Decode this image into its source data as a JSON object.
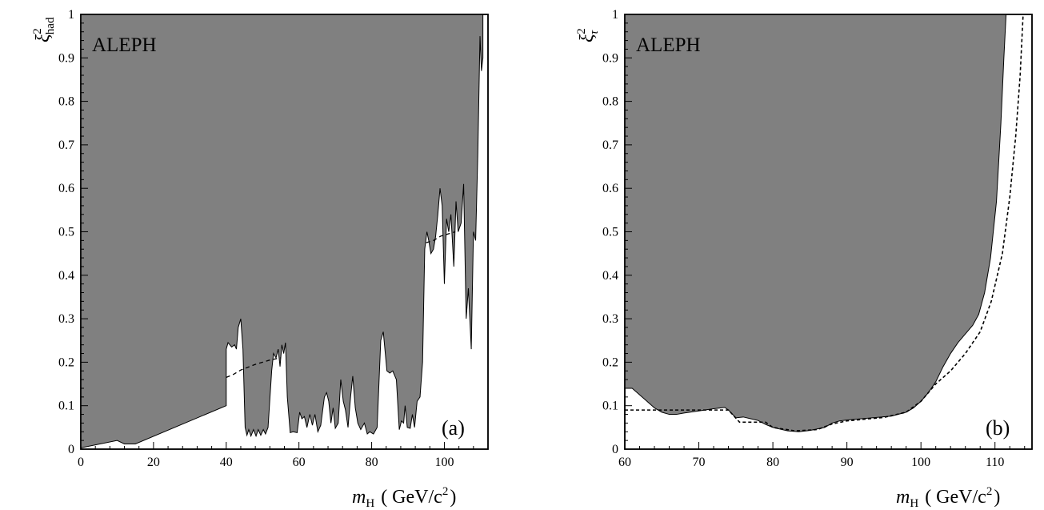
{
  "figure": {
    "panels": [
      "a",
      "b"
    ]
  },
  "colors": {
    "excluded_fill": "#808080",
    "axis": "#000000",
    "background": "#ffffff"
  },
  "chart_data": [
    {
      "type": "area",
      "panel_label": "(a)",
      "title": "ALEPH",
      "xlabel_main": "m",
      "xlabel_sub": "H",
      "xlabel_unit": "( GeV/c",
      "xlabel_unit_sup": "2",
      "xlabel_close": ")",
      "ylabel_main": "ξ",
      "ylabel_sup": "2",
      "ylabel_sub": "had",
      "xlim": [
        0,
        112
      ],
      "ylim": [
        0,
        1
      ],
      "x_ticks": [
        0,
        20,
        40,
        60,
        80,
        100
      ],
      "x_tick_labels": [
        "0",
        "20",
        "40",
        "60",
        "80",
        "100"
      ],
      "y_ticks": [
        0,
        0.1,
        0.2,
        0.3,
        0.4,
        0.5,
        0.6,
        0.7,
        0.8,
        0.9,
        1
      ],
      "y_tick_labels": [
        "0",
        "0.1",
        "0.2",
        "0.3",
        "0.4",
        "0.5",
        "0.6",
        "0.7",
        "0.8",
        "0.9",
        "1"
      ],
      "legend": "none",
      "grid": false,
      "series": [
        {
          "role": "observed excluded region (shaded above curve)",
          "style": "solid",
          "points": [
            [
              0,
              0.003
            ],
            [
              10,
              0.02
            ],
            [
              12,
              0.012
            ],
            [
              15,
              0.012
            ],
            [
              40,
              0.1
            ],
            [
              40,
              0.23
            ],
            [
              40.5,
              0.245
            ],
            [
              41.5,
              0.235
            ],
            [
              42.3,
              0.24
            ],
            [
              42.8,
              0.23
            ],
            [
              43.3,
              0.28
            ],
            [
              44,
              0.3
            ],
            [
              44.6,
              0.23
            ],
            [
              45.2,
              0.05
            ],
            [
              45.7,
              0.032
            ],
            [
              46.2,
              0.045
            ],
            [
              46.8,
              0.03
            ],
            [
              47.5,
              0.045
            ],
            [
              48.2,
              0.03
            ],
            [
              48.8,
              0.045
            ],
            [
              49.5,
              0.032
            ],
            [
              50.2,
              0.045
            ],
            [
              50.8,
              0.035
            ],
            [
              51.5,
              0.05
            ],
            [
              52.5,
              0.18
            ],
            [
              53,
              0.22
            ],
            [
              53.7,
              0.21
            ],
            [
              54.3,
              0.23
            ],
            [
              54.8,
              0.19
            ],
            [
              55.3,
              0.24
            ],
            [
              55.8,
              0.22
            ],
            [
              56.3,
              0.245
            ],
            [
              56.8,
              0.12
            ],
            [
              57.6,
              0.038
            ],
            [
              58.4,
              0.04
            ],
            [
              59.5,
              0.038
            ],
            [
              60.2,
              0.085
            ],
            [
              60.8,
              0.07
            ],
            [
              61.5,
              0.075
            ],
            [
              62.2,
              0.05
            ],
            [
              63,
              0.08
            ],
            [
              63.7,
              0.055
            ],
            [
              64.4,
              0.08
            ],
            [
              65.2,
              0.04
            ],
            [
              66,
              0.055
            ],
            [
              67,
              0.12
            ],
            [
              67.6,
              0.13
            ],
            [
              68.2,
              0.11
            ],
            [
              68.8,
              0.06
            ],
            [
              69.4,
              0.095
            ],
            [
              70,
              0.048
            ],
            [
              70.8,
              0.06
            ],
            [
              71.5,
              0.16
            ],
            [
              72.2,
              0.11
            ],
            [
              72.8,
              0.09
            ],
            [
              73.5,
              0.05
            ],
            [
              74.2,
              0.12
            ],
            [
              74.8,
              0.168
            ],
            [
              75.5,
              0.095
            ],
            [
              76.2,
              0.06
            ],
            [
              77,
              0.045
            ],
            [
              78,
              0.06
            ],
            [
              78.8,
              0.035
            ],
            [
              79.5,
              0.04
            ],
            [
              80.5,
              0.035
            ],
            [
              81.5,
              0.05
            ],
            [
              82.5,
              0.25
            ],
            [
              83.2,
              0.27
            ],
            [
              84.2,
              0.18
            ],
            [
              85,
              0.175
            ],
            [
              85.8,
              0.18
            ],
            [
              86.8,
              0.16
            ],
            [
              87.6,
              0.045
            ],
            [
              88.2,
              0.065
            ],
            [
              88.8,
              0.06
            ],
            [
              89.2,
              0.1
            ],
            [
              89.8,
              0.05
            ],
            [
              90.6,
              0.048
            ],
            [
              91.2,
              0.08
            ],
            [
              91.8,
              0.05
            ],
            [
              92.5,
              0.11
            ],
            [
              93.3,
              0.12
            ],
            [
              94,
              0.2
            ],
            [
              94.6,
              0.46
            ],
            [
              95.2,
              0.5
            ],
            [
              95.7,
              0.48
            ],
            [
              96.3,
              0.45
            ],
            [
              97,
              0.46
            ],
            [
              97.6,
              0.49
            ],
            [
              98.2,
              0.54
            ],
            [
              98.8,
              0.6
            ],
            [
              99.4,
              0.56
            ],
            [
              100,
              0.38
            ],
            [
              100.6,
              0.53
            ],
            [
              101.2,
              0.5
            ],
            [
              101.8,
              0.54
            ],
            [
              102.6,
              0.42
            ],
            [
              103.2,
              0.57
            ],
            [
              103.8,
              0.5
            ],
            [
              104.6,
              0.52
            ],
            [
              105.3,
              0.61
            ],
            [
              106,
              0.3
            ],
            [
              106.6,
              0.37
            ],
            [
              107.4,
              0.23
            ],
            [
              108,
              0.5
            ],
            [
              108.6,
              0.48
            ],
            [
              109.2,
              0.68
            ],
            [
              109.8,
              0.95
            ],
            [
              110.2,
              0.87
            ],
            [
              110.6,
              0.9
            ],
            [
              110.6,
              1.0
            ]
          ]
        },
        {
          "role": "expected limit",
          "style": "dashed",
          "points": [
            [
              40,
              0.165
            ],
            [
              42,
              0.172
            ],
            [
              44,
              0.182
            ],
            [
              48,
              0.195
            ],
            [
              52,
              0.205
            ],
            [
              55,
              0.21
            ]
          ],
          "points2": [
            [
              95,
              0.475
            ],
            [
              97,
              0.48
            ],
            [
              99,
              0.49
            ],
            [
              101,
              0.495
            ],
            [
              103,
              0.5
            ]
          ]
        }
      ]
    },
    {
      "type": "area",
      "panel_label": "(b)",
      "title": "ALEPH",
      "xlabel_main": "m",
      "xlabel_sub": "H",
      "xlabel_unit": "( GeV/c",
      "xlabel_unit_sup": "2",
      "xlabel_close": ")",
      "ylabel_main": "ξ",
      "ylabel_sup": "2",
      "ylabel_sub": "τ",
      "xlim": [
        60,
        115
      ],
      "ylim": [
        0,
        1
      ],
      "x_ticks": [
        60,
        70,
        80,
        90,
        100,
        110
      ],
      "x_tick_labels": [
        "60",
        "70",
        "80",
        "90",
        "100",
        "110"
      ],
      "y_ticks": [
        0,
        0.1,
        0.2,
        0.3,
        0.4,
        0.5,
        0.6,
        0.7,
        0.8,
        0.9,
        1
      ],
      "y_tick_labels": [
        "0",
        "0.1",
        "0.2",
        "0.3",
        "0.4",
        "0.5",
        "0.6",
        "0.7",
        "0.8",
        "0.9",
        "1"
      ],
      "legend": "none",
      "grid": false,
      "series": [
        {
          "role": "observed excluded region (shaded above curve)",
          "style": "solid",
          "points": [
            [
              60,
              0.14
            ],
            [
              61,
              0.14
            ],
            [
              62,
              0.125
            ],
            [
              63,
              0.11
            ],
            [
              64,
              0.095
            ],
            [
              65,
              0.085
            ],
            [
              66,
              0.08
            ],
            [
              67,
              0.08
            ],
            [
              68,
              0.083
            ],
            [
              70,
              0.088
            ],
            [
              72,
              0.093
            ],
            [
              73.5,
              0.096
            ],
            [
              74,
              0.09
            ],
            [
              75,
              0.072
            ],
            [
              76,
              0.074
            ],
            [
              77,
              0.07
            ],
            [
              78,
              0.066
            ],
            [
              79,
              0.057
            ],
            [
              80,
              0.05
            ],
            [
              82,
              0.042
            ],
            [
              83.5,
              0.04
            ],
            [
              85,
              0.043
            ],
            [
              87,
              0.05
            ],
            [
              88,
              0.06
            ],
            [
              89,
              0.065
            ],
            [
              90,
              0.067
            ],
            [
              92,
              0.07
            ],
            [
              94,
              0.073
            ],
            [
              96,
              0.076
            ],
            [
              98,
              0.085
            ],
            [
              99,
              0.095
            ],
            [
              100,
              0.11
            ],
            [
              101,
              0.13
            ],
            [
              102,
              0.155
            ],
            [
              103,
              0.19
            ],
            [
              104,
              0.22
            ],
            [
              105,
              0.245
            ],
            [
              106,
              0.265
            ],
            [
              107,
              0.285
            ],
            [
              107.8,
              0.31
            ],
            [
              108.6,
              0.36
            ],
            [
              109.4,
              0.44
            ],
            [
              110.2,
              0.57
            ],
            [
              110.8,
              0.75
            ],
            [
              111.2,
              0.9
            ],
            [
              111.5,
              1.0
            ]
          ]
        },
        {
          "role": "expected limit",
          "style": "dashed",
          "points": [
            [
              60,
              0.09
            ],
            [
              74,
              0.09
            ],
            [
              75.5,
              0.062
            ],
            [
              79,
              0.062
            ],
            [
              80,
              0.05
            ],
            [
              83,
              0.042
            ],
            [
              86,
              0.045
            ],
            [
              88,
              0.058
            ],
            [
              90,
              0.065
            ],
            [
              95,
              0.073
            ],
            [
              98,
              0.085
            ],
            [
              100,
              0.11
            ],
            [
              102,
              0.15
            ],
            [
              104,
              0.18
            ],
            [
              106,
              0.22
            ],
            [
              108,
              0.27
            ],
            [
              109.5,
              0.34
            ],
            [
              111,
              0.45
            ],
            [
              112,
              0.58
            ],
            [
              112.8,
              0.72
            ],
            [
              113.4,
              0.86
            ],
            [
              113.8,
              1.0
            ]
          ]
        }
      ]
    }
  ]
}
